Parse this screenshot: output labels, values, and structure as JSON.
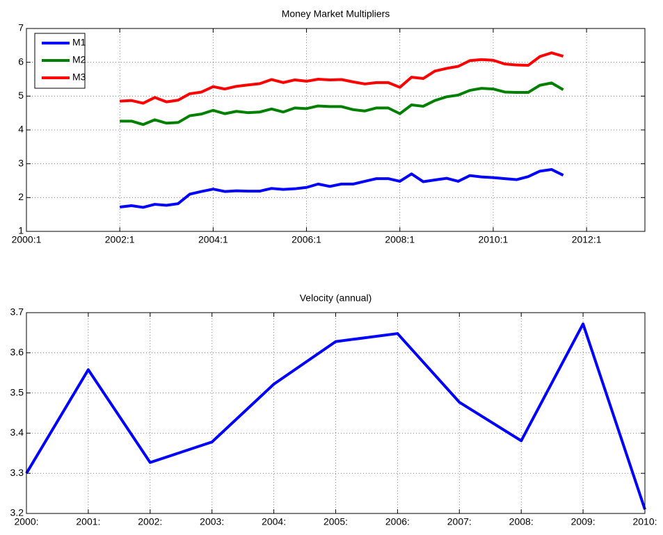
{
  "chart_data": [
    {
      "type": "line",
      "title": "Money Market Multipliers",
      "x": [
        2002.0,
        2002.25,
        2002.5,
        2002.75,
        2003.0,
        2003.25,
        2003.5,
        2003.75,
        2004.0,
        2004.25,
        2004.5,
        2004.75,
        2005.0,
        2005.25,
        2005.5,
        2005.75,
        2006.0,
        2006.25,
        2006.5,
        2006.75,
        2007.0,
        2007.25,
        2007.5,
        2007.75,
        2008.0,
        2008.25,
        2008.5,
        2008.75,
        2009.0,
        2009.25,
        2009.5,
        2009.75,
        2010.0,
        2010.25,
        2010.5,
        2010.75,
        2011.0,
        2011.25,
        2011.5
      ],
      "series": [
        {
          "name": "M1",
          "color": "#0000ff",
          "values": [
            1.72,
            1.76,
            1.71,
            1.8,
            1.77,
            1.82,
            2.1,
            2.18,
            2.25,
            2.18,
            2.2,
            2.19,
            2.19,
            2.27,
            2.24,
            2.26,
            2.3,
            2.4,
            2.33,
            2.4,
            2.4,
            2.48,
            2.56,
            2.56,
            2.48,
            2.7,
            2.47,
            2.52,
            2.57,
            2.48,
            2.65,
            2.61,
            2.59,
            2.56,
            2.53,
            2.62,
            2.78,
            2.83,
            2.66
          ]
        },
        {
          "name": "M2",
          "color": "#008000",
          "values": [
            4.26,
            4.26,
            4.16,
            4.3,
            4.2,
            4.22,
            4.42,
            4.47,
            4.58,
            4.48,
            4.55,
            4.51,
            4.53,
            4.62,
            4.53,
            4.65,
            4.63,
            4.71,
            4.69,
            4.69,
            4.6,
            4.56,
            4.65,
            4.65,
            4.48,
            4.74,
            4.7,
            4.87,
            4.98,
            5.03,
            5.17,
            5.23,
            5.21,
            5.12,
            5.11,
            5.11,
            5.32,
            5.39,
            5.19
          ]
        },
        {
          "name": "M3",
          "color": "#ff0000",
          "values": [
            4.85,
            4.87,
            4.79,
            4.96,
            4.83,
            4.88,
            5.07,
            5.12,
            5.28,
            5.21,
            5.29,
            5.33,
            5.37,
            5.49,
            5.4,
            5.48,
            5.44,
            5.5,
            5.48,
            5.49,
            5.42,
            5.36,
            5.4,
            5.4,
            5.26,
            5.56,
            5.52,
            5.74,
            5.82,
            5.88,
            6.05,
            6.08,
            6.06,
            5.95,
            5.92,
            5.91,
            6.17,
            6.28,
            6.18
          ]
        }
      ],
      "xlim": [
        2000,
        2013.25
      ],
      "xticks": [
        {
          "value": 2000,
          "label": "2000:1"
        },
        {
          "value": 2002,
          "label": "2002:1"
        },
        {
          "value": 2004,
          "label": "2004:1"
        },
        {
          "value": 2006,
          "label": "2006:1"
        },
        {
          "value": 2008,
          "label": "2008:1"
        },
        {
          "value": 2010,
          "label": "2010:1"
        },
        {
          "value": 2012,
          "label": "2012:1"
        }
      ],
      "ylim": [
        1,
        7
      ],
      "yticks": [
        1,
        2,
        3,
        4,
        5,
        6,
        7
      ],
      "grid": true,
      "legend": "northwest"
    },
    {
      "type": "line",
      "title": "Velocity (annual)",
      "x": [
        2000,
        2001,
        2002,
        2003,
        2004,
        2005,
        2006,
        2007,
        2008,
        2009,
        2010
      ],
      "values": [
        3.3,
        3.558,
        3.327,
        3.378,
        3.522,
        3.628,
        3.648,
        3.477,
        3.381,
        3.672,
        3.21
      ],
      "color": "#0000ff",
      "xlim": [
        2000,
        2010
      ],
      "xticks": [
        {
          "value": 2000,
          "label": "2000:"
        },
        {
          "value": 2001,
          "label": "2001:"
        },
        {
          "value": 2002,
          "label": "2002:"
        },
        {
          "value": 2003,
          "label": "2003:"
        },
        {
          "value": 2004,
          "label": "2004:"
        },
        {
          "value": 2005,
          "label": "2005:"
        },
        {
          "value": 2006,
          "label": "2006:"
        },
        {
          "value": 2007,
          "label": "2007:"
        },
        {
          "value": 2008,
          "label": "2008:"
        },
        {
          "value": 2009,
          "label": "2009:"
        },
        {
          "value": 2010,
          "label": "2010:"
        }
      ],
      "ylim": [
        3.2,
        3.7
      ],
      "yticks": [
        3.2,
        3.3,
        3.4,
        3.5,
        3.6,
        3.7
      ],
      "grid": true
    }
  ]
}
